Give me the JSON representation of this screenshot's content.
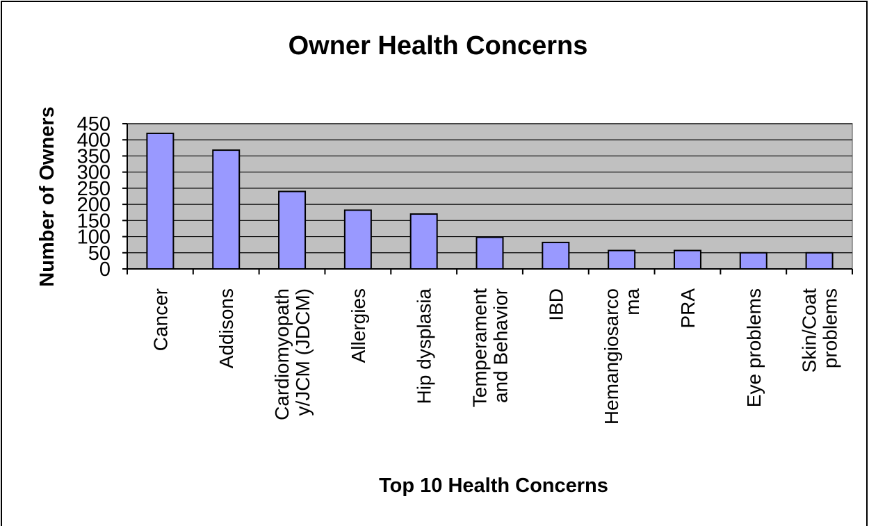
{
  "chart_data": {
    "type": "bar",
    "title": "Owner Health Concerns",
    "xlabel": "Top 10 Health Concerns",
    "ylabel": "Number of Owners",
    "ylim": [
      0,
      450
    ],
    "yticks": [
      "0",
      "50",
      "100",
      "150",
      "200",
      "250",
      "300",
      "350",
      "400",
      "450"
    ],
    "grid": true,
    "legend": "none",
    "categories": [
      [
        "Cancer"
      ],
      [
        "Addisons"
      ],
      [
        "Cardiomyopath",
        "y/JCM (JDCM)"
      ],
      [
        "Allergies"
      ],
      [
        "Hip dysplasia"
      ],
      [
        "Temperament",
        "and Behavior"
      ],
      [
        "IBD"
      ],
      [
        "Hemangiosarco",
        "ma"
      ],
      [
        "PRA"
      ],
      [
        "Eye problems"
      ],
      [
        "Skin/Coat",
        "problems"
      ]
    ],
    "values": [
      420,
      368,
      240,
      182,
      170,
      98,
      82,
      57,
      57,
      50,
      50
    ],
    "colors": {
      "bar_fill": "#9999ff",
      "plot_bg": "#c0c0c0",
      "bar_stroke": "#000000",
      "grid": "#000000"
    }
  }
}
